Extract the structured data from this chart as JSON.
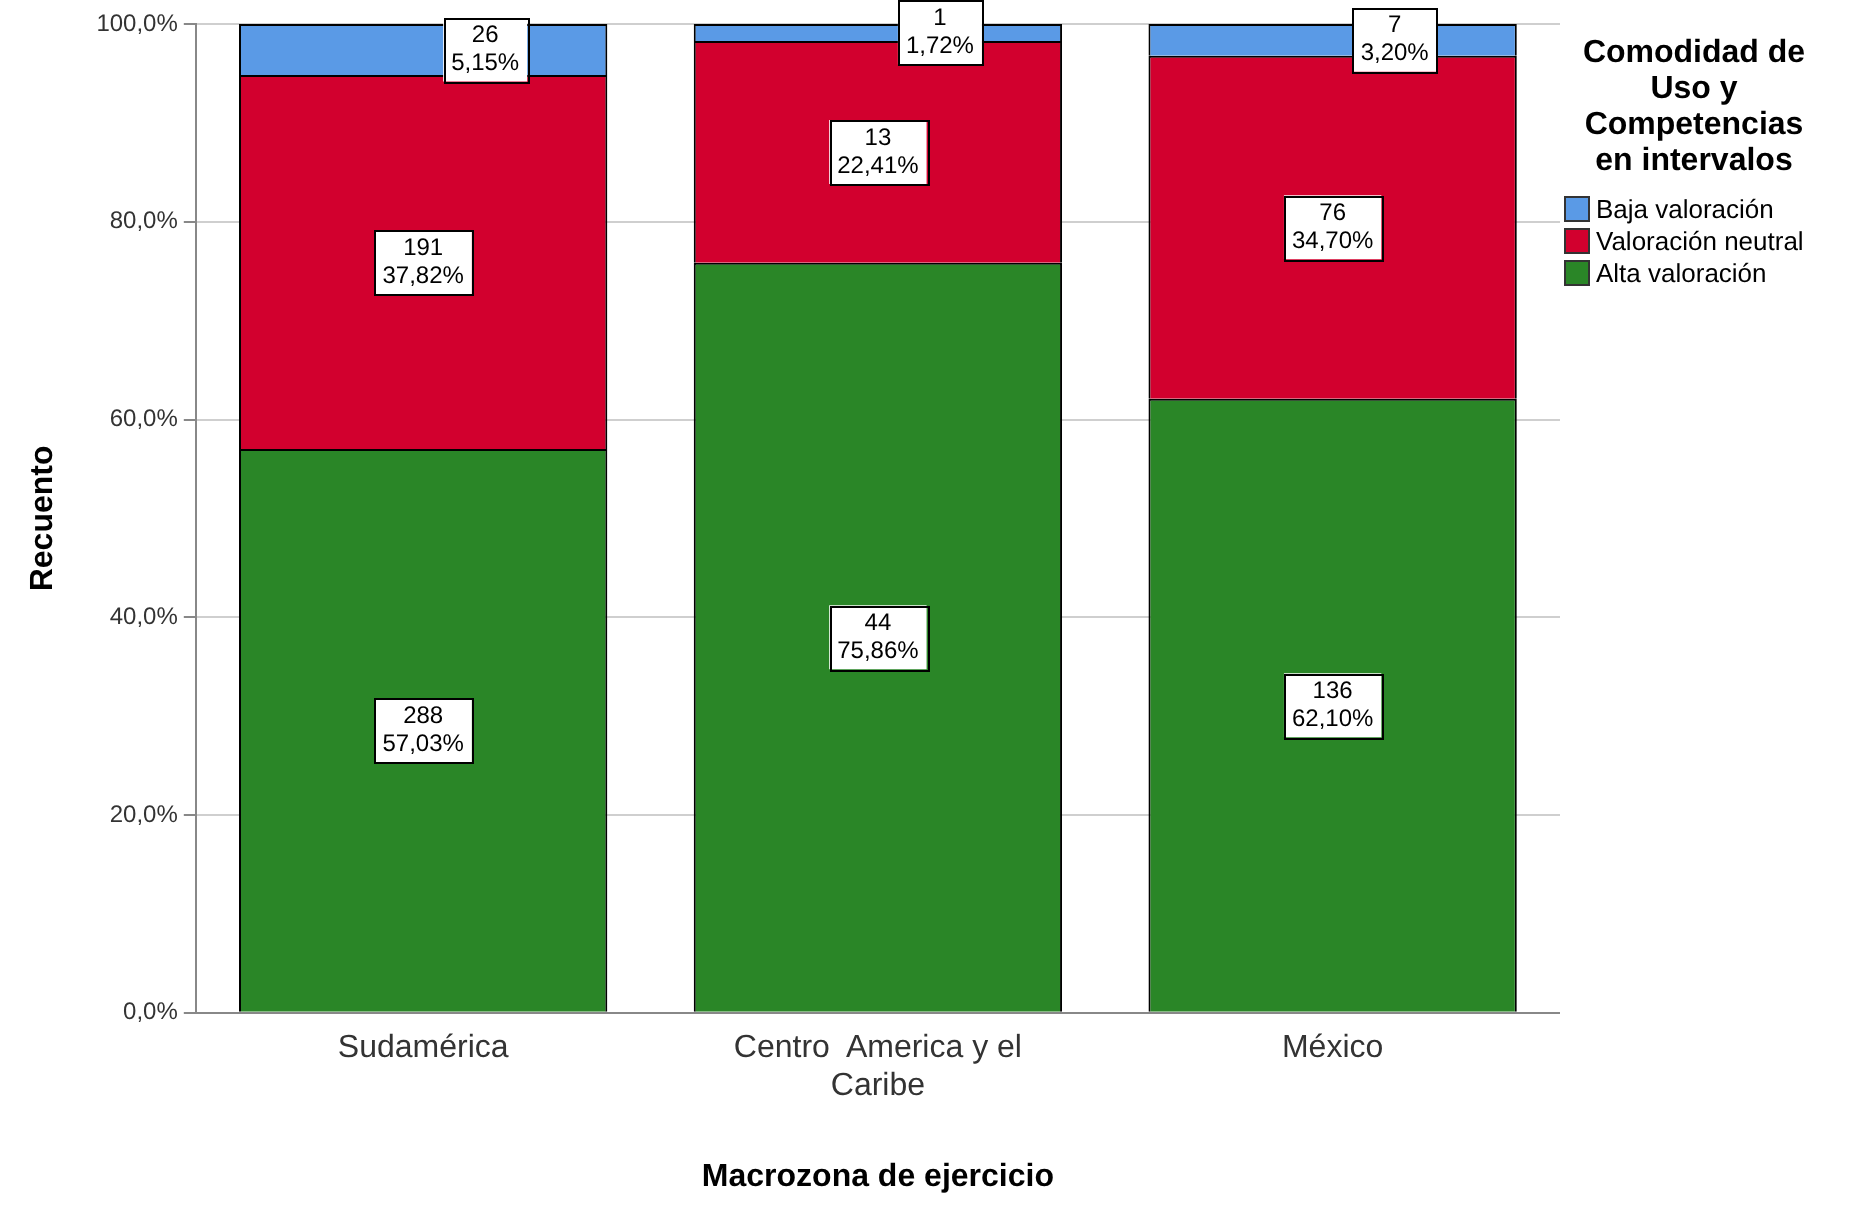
{
  "chart_data": {
    "type": "bar",
    "stacked": true,
    "xlabel": "Macrozona de ejercicio",
    "ylabel": "Recuento",
    "legend_title": "Comodidad de Uso  y Competencias en intervalos",
    "legend": "top right",
    "grid": "y",
    "categories": [
      "Sudamérica",
      "Centro  America y el Caribe",
      "México"
    ],
    "ylim": [
      0,
      100
    ],
    "yticks": [
      {
        "value": 0,
        "label": "0,0%"
      },
      {
        "value": 20,
        "label": "20,0%"
      },
      {
        "value": 40,
        "label": "40,0%"
      },
      {
        "value": 60,
        "label": "60,0%"
      },
      {
        "value": 80,
        "label": "80,0%"
      },
      {
        "value": 100,
        "label": "100,0%"
      }
    ],
    "series": [
      {
        "name": "Alta valoración",
        "color": "#2a8627",
        "values": [
          57.03,
          75.86,
          62.1
        ],
        "value_labels": [
          "288\n57,03%",
          "44\n75,86%",
          "136\n62,10%"
        ]
      },
      {
        "name": "Valoración neutral",
        "color": "#d2002e",
        "values": [
          37.82,
          22.41,
          34.7
        ],
        "value_labels": [
          "191\n37,82%",
          "13\n22,41%",
          "76\n34,70%"
        ]
      },
      {
        "name": "Baja valoración",
        "color": "#5a9ae6",
        "values": [
          5.15,
          1.72,
          3.2
        ],
        "value_labels": [
          "26\n5,15%",
          "1\n1,72%",
          "7\n3,20%"
        ]
      }
    ]
  }
}
